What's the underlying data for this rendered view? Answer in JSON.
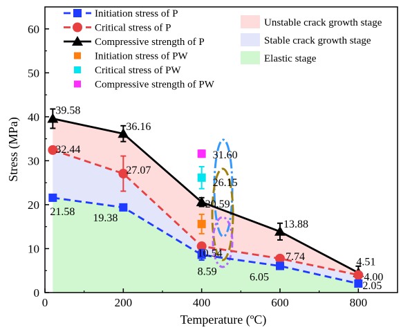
{
  "chart_data": {
    "type": "line",
    "xlabel": "Temperature (ºC)",
    "ylabel": "Stress (MPa)",
    "xlim": [
      0,
      900
    ],
    "ylim": [
      0,
      65
    ],
    "xticks": [
      0,
      200,
      400,
      600,
      800
    ],
    "yticks": [
      0,
      10,
      20,
      30,
      40,
      50,
      60
    ],
    "grid": false,
    "legend_position": "top",
    "colors": {
      "initiation": "#1f3bff",
      "critical": "#e84040",
      "compressive": "#000000",
      "pw_initiation": "#ff7f0e",
      "pw_critical": "#00e5f0",
      "pw_compressive": "#ff2cff",
      "unstable_fill": "#ffdcdc",
      "stable_fill": "#e3e6fa",
      "elastic_fill": "#d0f7d0"
    },
    "series": [
      {
        "key": "compressive",
        "name": "Compressive strength of P",
        "x": [
          20,
          200,
          400,
          600,
          800
        ],
        "values": [
          39.58,
          36.16,
          20.59,
          13.88,
          4.51
        ],
        "err": [
          2.2,
          1.8,
          1.0,
          1.9,
          1.5
        ],
        "labels": [
          "39.58",
          "36.16",
          "20.59",
          "13.88",
          "4.51"
        ]
      },
      {
        "key": "critical",
        "name": "Critical stress of P",
        "x": [
          20,
          200,
          400,
          600,
          800
        ],
        "values": [
          32.44,
          27.07,
          10.54,
          7.74,
          4.0
        ],
        "err": [
          0,
          4.0,
          0,
          0,
          0
        ],
        "labels": [
          "32.44",
          "27.07",
          "10.54",
          "7.74",
          "4.00"
        ]
      },
      {
        "key": "initiation",
        "name": "Initiation stress of P",
        "x": [
          20,
          200,
          400,
          600,
          800
        ],
        "values": [
          21.58,
          19.38,
          8.59,
          6.05,
          2.05
        ],
        "err": [
          0,
          0,
          1.2,
          0,
          0
        ],
        "labels": [
          "21.58",
          "19.38",
          "8.59",
          "6.05",
          "2.05"
        ]
      }
    ],
    "pw_points": [
      {
        "key": "pw_initiation",
        "name": "Initiation stress of PW",
        "x": 400,
        "value": 15.6,
        "err": 2.2,
        "label": ""
      },
      {
        "key": "pw_critical",
        "name": "Critical stress of PW",
        "x": 400,
        "value": 26.15,
        "err": 2.5,
        "label": "26.15"
      },
      {
        "key": "pw_compressive",
        "name": "Compressive strength of PW",
        "x": 400,
        "value": 31.6,
        "err": 0.8,
        "label": "31.60"
      }
    ],
    "regions": [
      {
        "key": "unstable_fill",
        "name": "Unstable crack growth stage"
      },
      {
        "key": "stable_fill",
        "name": "Stable crack growth stage"
      },
      {
        "key": "elastic_fill",
        "name": "Elastic stage"
      }
    ]
  }
}
